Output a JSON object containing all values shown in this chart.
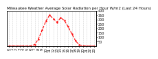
{
  "title": "Milwaukee Weather Average Solar Radiation per Hour W/m2 (Last 24 Hours)",
  "background_color": "#ffffff",
  "plot_bg_color": "#ffffff",
  "grid_color": "#aaaaaa",
  "line_color": "#ff0000",
  "x_values": [
    0,
    1,
    2,
    3,
    4,
    5,
    6,
    7,
    8,
    9,
    10,
    11,
    12,
    13,
    14,
    15,
    16,
    17,
    18,
    19,
    20,
    21,
    22,
    23
  ],
  "y_values": [
    0,
    0,
    0,
    0,
    0,
    0,
    2,
    18,
    80,
    180,
    280,
    350,
    310,
    270,
    320,
    290,
    220,
    140,
    60,
    15,
    2,
    0,
    0,
    0
  ],
  "ylim": [
    0,
    400
  ],
  "xlim": [
    -0.5,
    23.5
  ],
  "yticks": [
    50,
    100,
    150,
    200,
    250,
    300,
    350,
    400
  ],
  "ytick_labels": [
    "50",
    "100",
    "150",
    "200",
    "250",
    "300",
    "350",
    "400"
  ],
  "xticks": [
    0,
    1,
    2,
    3,
    4,
    5,
    6,
    7,
    8,
    9,
    10,
    11,
    12,
    13,
    14,
    15,
    16,
    17,
    18,
    19,
    20,
    21,
    22,
    23
  ],
  "title_fontsize": 4,
  "tick_fontsize": 3.5,
  "line_width": 0.8,
  "marker": ".",
  "marker_size": 1.5
}
